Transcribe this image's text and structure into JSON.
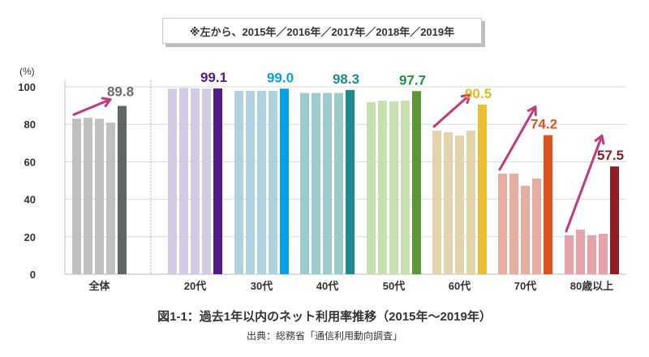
{
  "note": "※左から、2015年／2016年／2017年／2018年／2019年",
  "caption": "図1-1：過去1年以内のネット利用率推移（2015年～2019年）",
  "source": "出典：総務省「通信利用動向調査」",
  "chart_data": {
    "type": "bar",
    "title": "過去1年以内のネット利用率推移（2015年～2019年）",
    "ylabel": "(%)",
    "ylim": [
      0,
      100
    ],
    "yticks": [
      "0",
      "20",
      "40",
      "60",
      "80",
      "100"
    ],
    "grid": true,
    "series_years": [
      "2015",
      "2016",
      "2017",
      "2018",
      "2019"
    ],
    "categories": [
      "全体",
      "20代",
      "30代",
      "40代",
      "50代",
      "60代",
      "70代",
      "80歳以上"
    ],
    "groups": [
      {
        "name": "全体",
        "values": [
          83.0,
          83.5,
          83.0,
          80.9,
          89.8
        ],
        "label": "89.8",
        "light": "#c0c0c0",
        "dark": "#606565",
        "arrow": true
      },
      {
        "name": "20代",
        "values": [
          99.0,
          99.4,
          99.2,
          99.0,
          99.1
        ],
        "label": "99.1",
        "light": "#d3cbe4",
        "dark": "#55198a",
        "arrow": false
      },
      {
        "name": "30代",
        "values": [
          97.9,
          97.9,
          97.9,
          97.9,
          99.0
        ],
        "label": "99.0",
        "light": "#b0d2e0",
        "dark": "#06a0e5",
        "arrow": false
      },
      {
        "name": "40代",
        "values": [
          96.7,
          96.7,
          96.7,
          96.7,
          98.3
        ],
        "label": "98.3",
        "light": "#9bcbcd",
        "dark": "#1e8a8f",
        "arrow": false
      },
      {
        "name": "50代",
        "values": [
          91.8,
          92.6,
          92.2,
          92.6,
          97.7
        ],
        "label": "97.7",
        "light": "#c7e0b0",
        "dark": "#5c9635",
        "arrow": false
      },
      {
        "name": "60代",
        "values": [
          76.6,
          75.8,
          74.0,
          76.6,
          90.5
        ],
        "label": "90.5",
        "light": "#e3d4ab",
        "dark": "#e8c032",
        "arrow": true
      },
      {
        "name": "70代",
        "values": [
          53.7,
          53.7,
          47.2,
          51.1,
          74.2
        ],
        "label": "74.2",
        "light": "#e6aea1",
        "dark": "#e0531c",
        "arrow": true
      },
      {
        "name": "80歳以上",
        "values": [
          20.8,
          23.8,
          20.8,
          21.6,
          57.5
        ],
        "label": "57.5",
        "light": "#e6a4aa",
        "dark": "#8f1d23",
        "arrow": true
      }
    ],
    "label_colors": [
      "#6b6b6b",
      "#55198a",
      "#06a0e5",
      "#1e8a8f",
      "#1f9448",
      "#e8b820",
      "#e0531c",
      "#8f1d23"
    ],
    "arrow_color": "#c03a7c"
  }
}
